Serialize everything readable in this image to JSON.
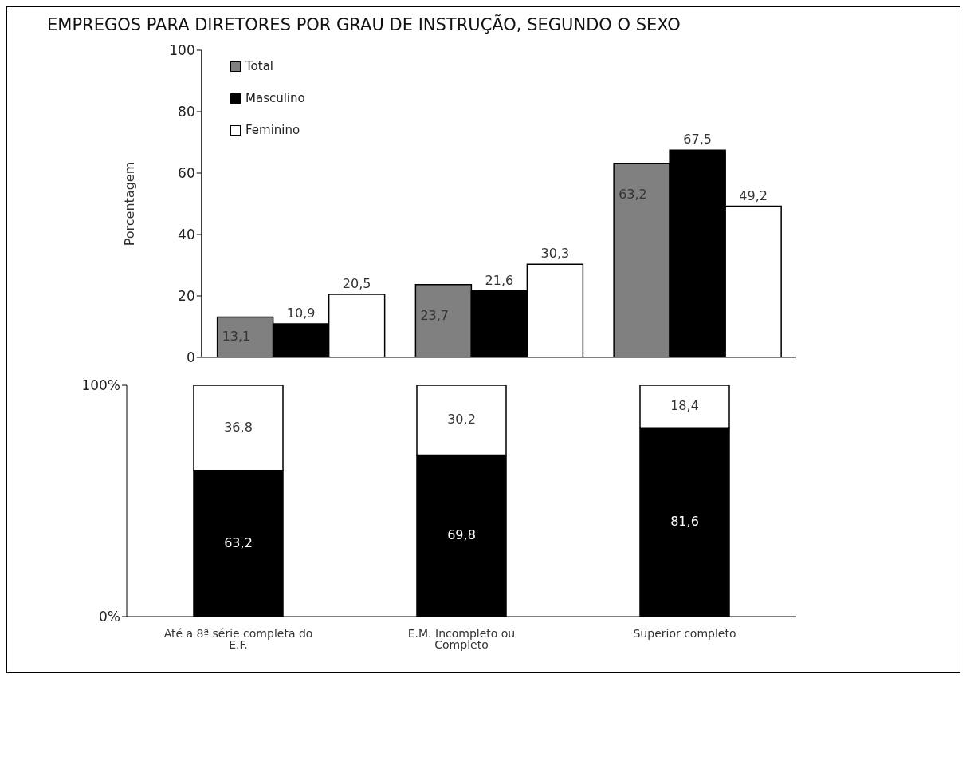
{
  "chart_data": [
    {
      "type": "bar",
      "title": "EMPREGOS PARA DIRETORES POR GRAU DE INSTRUÇÃO, SEGUNDO O SEXO",
      "ylabel": "Porcentagem",
      "categories": [
        null,
        null,
        null
      ],
      "tick_labels": "y",
      "ylim": [
        0,
        100
      ],
      "yticks": [
        0,
        20,
        40,
        60,
        80,
        100
      ],
      "legend": "top left",
      "series": [
        {
          "name": "Total",
          "color": "#808080",
          "values": [
            13.1,
            23.7,
            63.2
          ],
          "value_labels": [
            "13,1",
            "23,7",
            "63,2"
          ]
        },
        {
          "name": "Masculino",
          "color": "#000000",
          "values": [
            10.9,
            21.6,
            67.5
          ],
          "value_labels": [
            "10,9",
            "21,6",
            "67,5"
          ]
        },
        {
          "name": "Feminino",
          "color": "#ffffff",
          "values": [
            20.5,
            30.3,
            49.2
          ],
          "value_labels": [
            "20,5",
            "30,3",
            "49,2"
          ]
        }
      ]
    },
    {
      "type": "bar",
      "stacked": true,
      "categories": [
        "Até a 8ª série completa do E.F.",
        "E.M. Incompleto ou Completo",
        "Superior completo"
      ],
      "ylim": [
        0,
        100
      ],
      "yticks": [
        {
          "value": 0,
          "label": "0%"
        },
        {
          "value": 100,
          "label": "100%"
        }
      ],
      "series": [
        {
          "color": "#000000",
          "values": [
            63.2,
            69.8,
            81.6
          ],
          "value_labels": [
            "63,2",
            "69,8",
            "81,6"
          ]
        },
        {
          "color": "#ffffff",
          "values": [
            36.8,
            30.2,
            18.4
          ],
          "value_labels": [
            "36,8",
            "30,2",
            "18,4"
          ]
        }
      ]
    }
  ]
}
